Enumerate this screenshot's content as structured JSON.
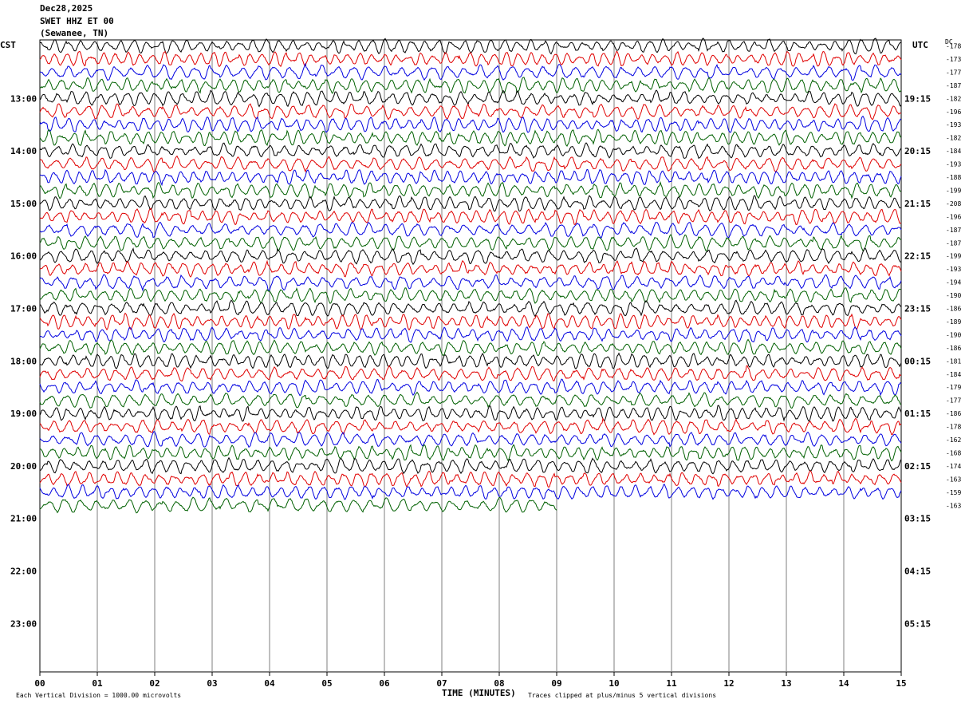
{
  "header": {
    "date": "Dec28,2025",
    "station": "SWET HHZ ET 00",
    "location": "(Sewanee, TN)"
  },
  "left_zone_label": "CST",
  "right_zone_label": "UTC",
  "dc_label": "DC",
  "footer": {
    "scale_note": "Each Vertical Division = 1000.00 microvolts",
    "clip_note": "Traces clipped at plus/minus 5 vertical divisions"
  },
  "colors": {
    "trace_cycle": [
      "#000000",
      "#e00000",
      "#0000e0",
      "#006000"
    ],
    "grid": "#7f7f7f"
  },
  "chart_data": {
    "type": "line",
    "title": "SWET HHZ ET 00",
    "xlabel": "TIME (MINUTES)",
    "ylabel": "",
    "xlim": [
      0,
      15
    ],
    "x_ticks": [
      "00",
      "01",
      "02",
      "03",
      "04",
      "05",
      "06",
      "07",
      "08",
      "09",
      "10",
      "11",
      "12",
      "13",
      "14",
      "15"
    ],
    "left_hour_labels": [
      "13:00",
      "14:00",
      "15:00",
      "16:00",
      "17:00",
      "18:00",
      "19:00",
      "20:00",
      "21:00",
      "22:00",
      "23:00"
    ],
    "right_hour_labels": [
      "19:15",
      "20:15",
      "21:15",
      "22:15",
      "23:15",
      "00:15",
      "01:15",
      "02:15",
      "03:15",
      "04:15",
      "05:15"
    ],
    "dc_offsets": [
      -178,
      -173,
      -177,
      -187,
      -182,
      -196,
      -193,
      -182,
      -184,
      -193,
      -188,
      -199,
      -208,
      -196,
      -187,
      -187,
      -199,
      -193,
      -194,
      -190,
      -186,
      -189,
      -190,
      -186,
      -181,
      -184,
      -179,
      -177,
      -186,
      -178,
      -162,
      -168,
      -174,
      -163,
      -159,
      -163
    ],
    "trace_count": 36,
    "last_trace_end_minute": 9,
    "grid": true
  }
}
